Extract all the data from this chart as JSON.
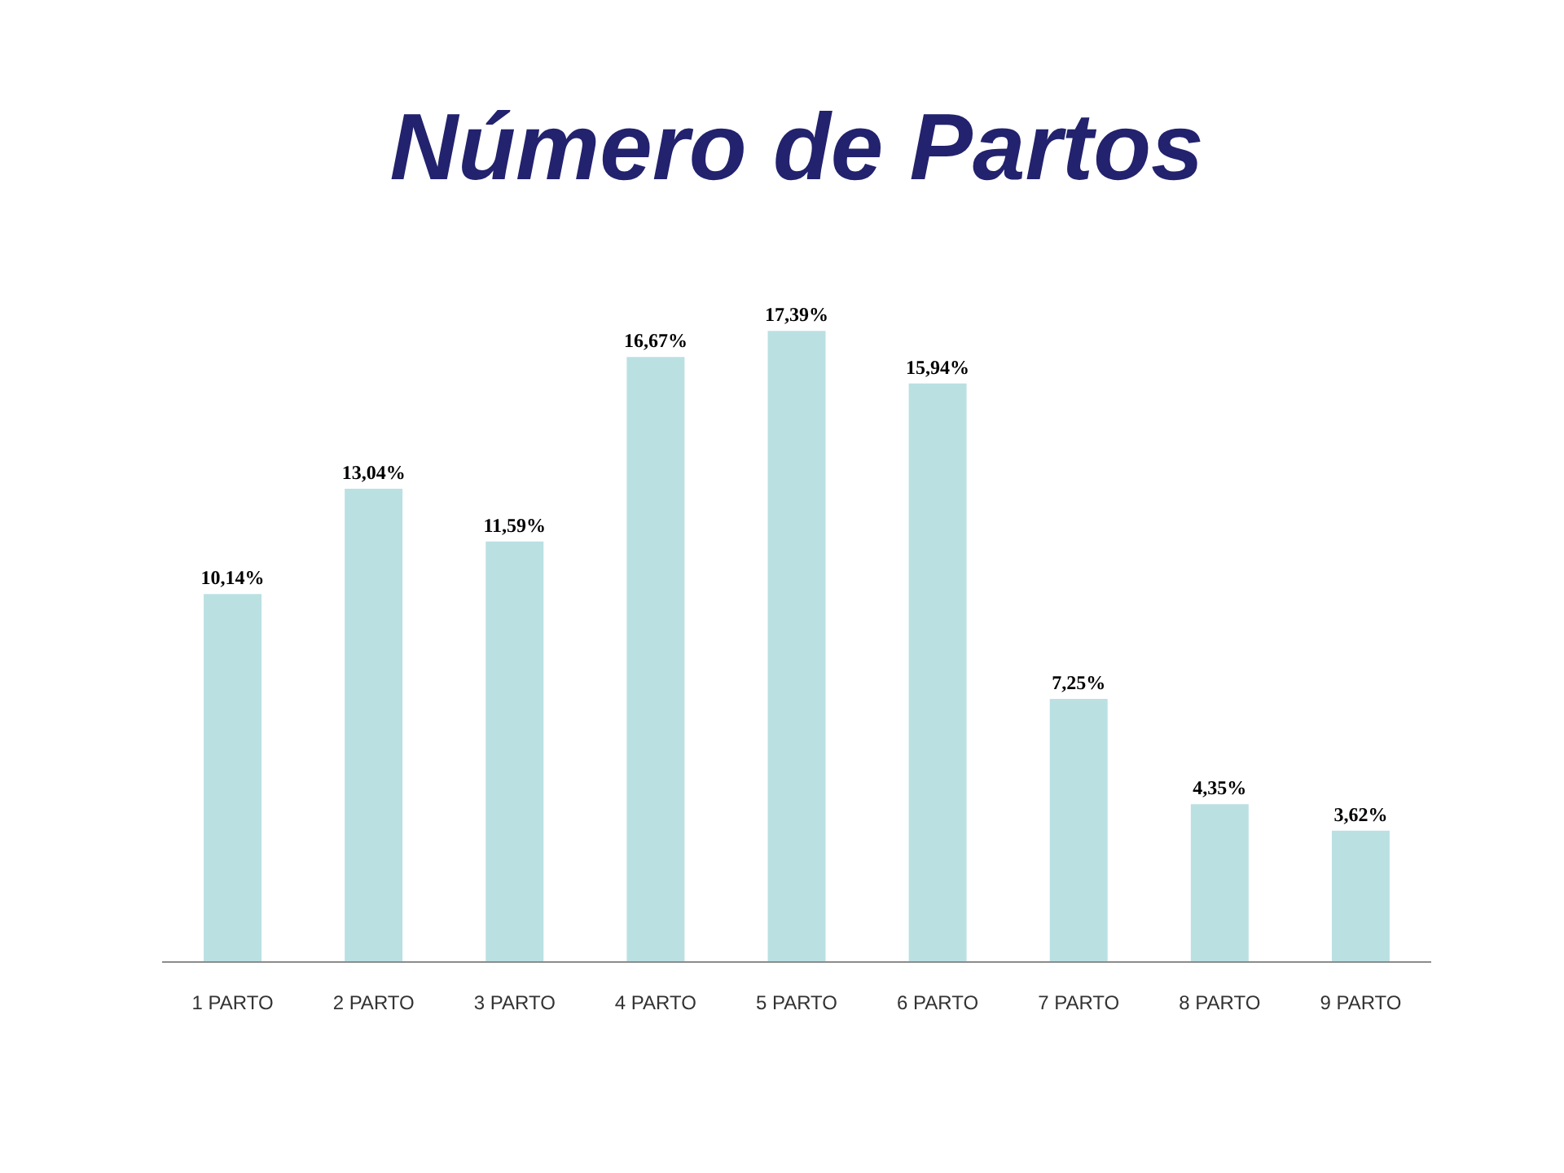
{
  "chart_data": {
    "type": "bar",
    "title": "Número de Partos",
    "categories": [
      "1 PARTO",
      "2 PARTO",
      "3 PARTO",
      "4 PARTO",
      "5 PARTO",
      "6 PARTO",
      "7 PARTO",
      "8 PARTO",
      "9 PARTO"
    ],
    "values": [
      10.14,
      13.04,
      11.59,
      16.67,
      17.39,
      15.94,
      7.25,
      4.35,
      3.62
    ],
    "value_labels": [
      "10,14%",
      "13,04%",
      "11,59%",
      "16,67%",
      "17,39%",
      "15,94%",
      "7,25%",
      "4,35%",
      "3,62%"
    ],
    "color": "#bae0e2"
  }
}
